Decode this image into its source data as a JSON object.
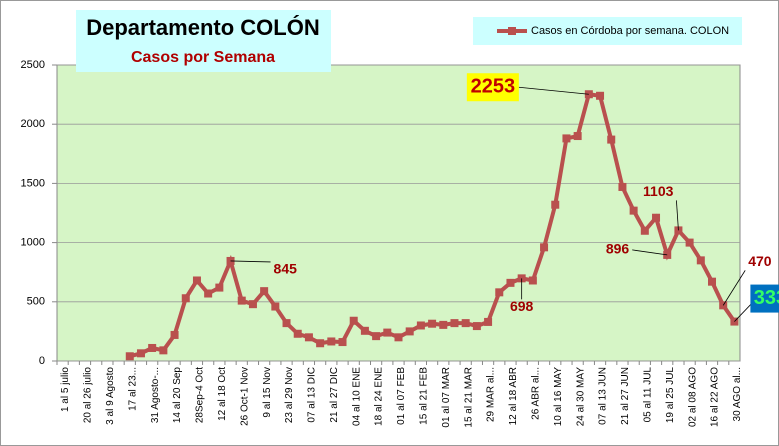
{
  "chart_data": {
    "type": "line",
    "title": "Departamento COLÓN",
    "subtitle": "Casos por Semana",
    "categories": [
      "1 al 5 julio",
      null,
      "20 al 26 julio",
      null,
      "3 al 9 Agosto",
      null,
      "17 al 23...",
      null,
      "31 Agosto-...",
      null,
      "14 al 20 Sep",
      null,
      "28Sep-4 Oct",
      null,
      "12 al 18 Oct",
      null,
      "26 Oct-1 Nov",
      null,
      "9 al 15 Nov",
      null,
      "23 al 29 Nov",
      null,
      "07 al 13 DIC",
      null,
      "21 al 27 DIC",
      null,
      "04 al 10 ENE",
      null,
      "18 al 24 ENE",
      null,
      "01 al 07 FEB",
      null,
      "15 al 21 FEB",
      null,
      "01 al 07 MAR",
      null,
      "15 al 21 MAR",
      null,
      "29 MAR al...",
      null,
      "12 al 18 ABR",
      null,
      "26 ABR al...",
      null,
      "10 al 16 MAY",
      null,
      "24 al 30 MAY",
      null,
      "07 al 13 JUN",
      null,
      "21 al 27 JUN",
      null,
      "05 al 11 JUL",
      null,
      "19 al 25 JUL",
      null,
      "02 al 08 AGO",
      null,
      "16 al 22 AGO",
      null,
      "30 AGO al..."
    ],
    "series": [
      {
        "name": "Casos en Córdoba por semana. COLON",
        "color": "#b9504e",
        "values": [
          null,
          null,
          null,
          null,
          null,
          null,
          40,
          65,
          110,
          90,
          220,
          530,
          680,
          570,
          620,
          845,
          510,
          480,
          590,
          460,
          320,
          230,
          200,
          150,
          165,
          160,
          340,
          255,
          210,
          240,
          200,
          250,
          300,
          315,
          305,
          320,
          320,
          295,
          330,
          580,
          660,
          698,
          680,
          960,
          1320,
          1880,
          1900,
          2253,
          2240,
          1870,
          1470,
          1270,
          1100,
          1210,
          896,
          1103,
          1000,
          850,
          670,
          470,
          333
        ]
      }
    ],
    "ylim": [
      0,
      2500
    ],
    "yticks": [
      0,
      500,
      1000,
      1500,
      2000,
      2500
    ],
    "grid": true,
    "plot_background": "#d6f5c6"
  }
}
